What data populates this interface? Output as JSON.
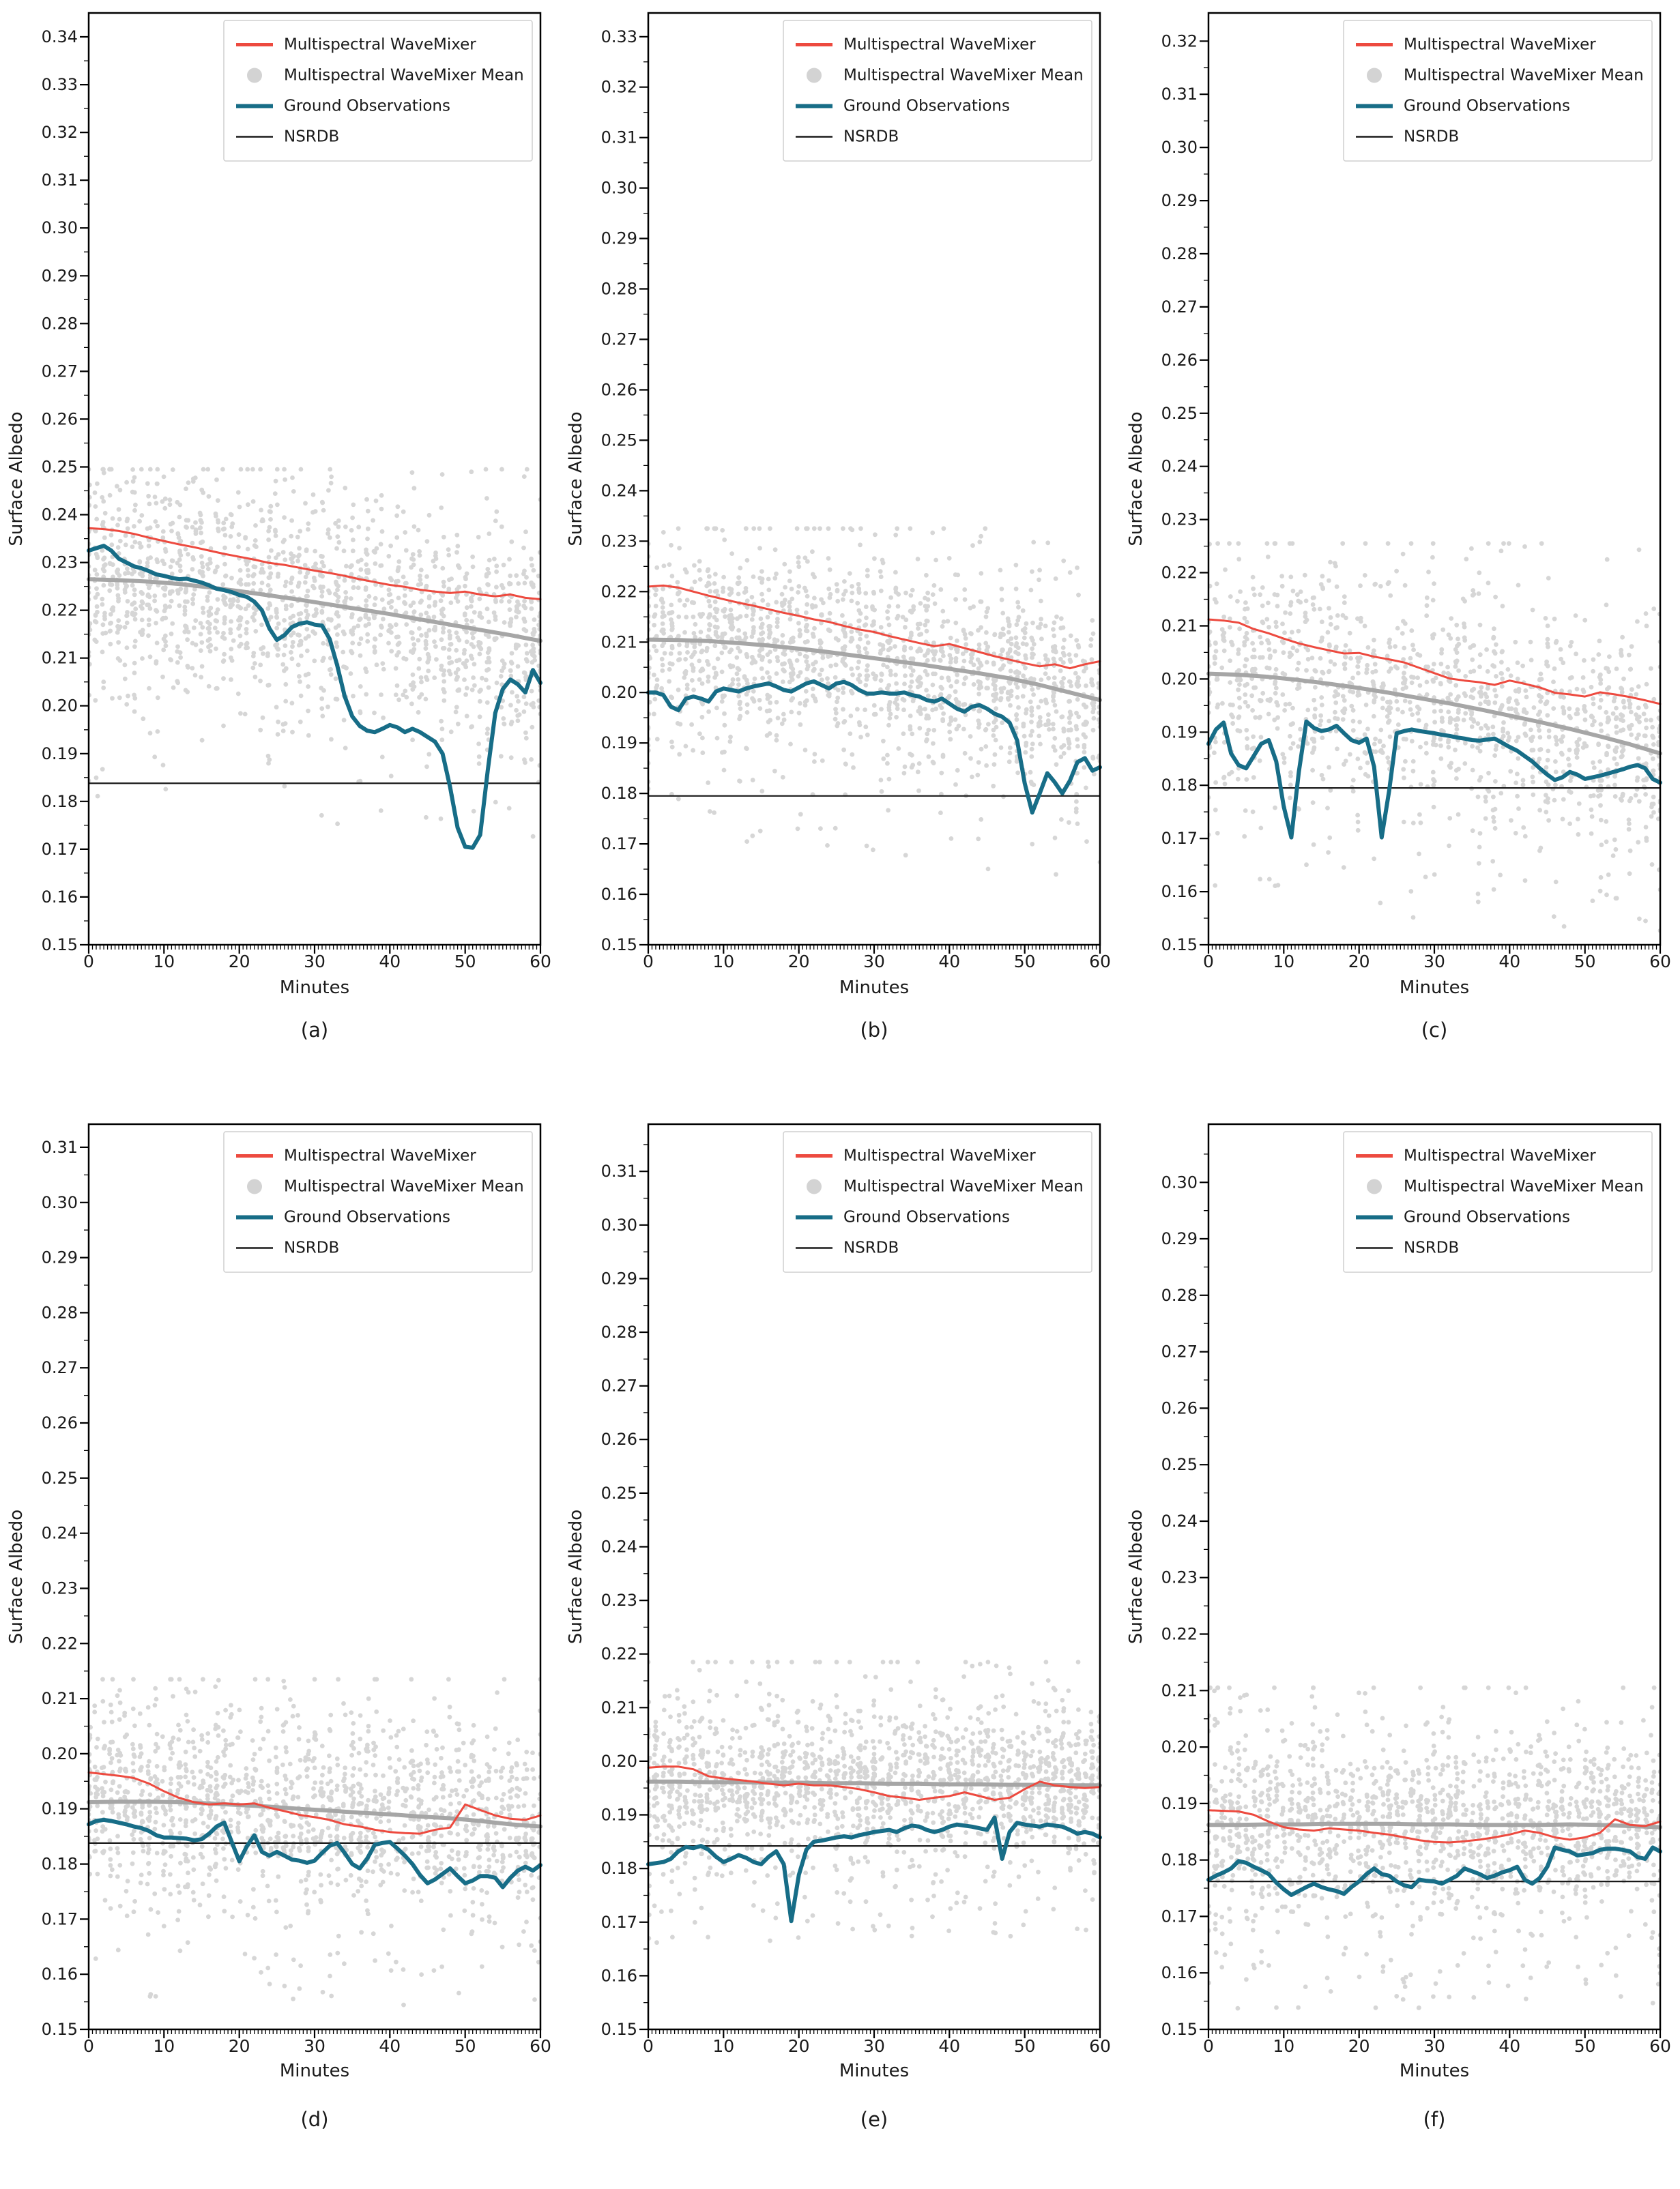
{
  "figure": {
    "ylabel": "Surface Albedo",
    "xlabel": "Minutes",
    "colors": {
      "wavemixer": "#ed4a3f",
      "ground": "#176d87",
      "mean_dot": "#d3d3d3",
      "mean_line": "#a6a6a6",
      "nsrdb": "#1a1a1a"
    },
    "legend": [
      {
        "label": "Multispectral WaveMixer",
        "type": "line",
        "color": "#ed4a3f",
        "width": 5
      },
      {
        "label": "Multispectral WaveMixer Mean",
        "type": "dot",
        "color": "#d3d3d3"
      },
      {
        "label": "Ground Observations",
        "type": "line",
        "color": "#176d87",
        "width": 6
      },
      {
        "label": "NSRDB",
        "type": "line",
        "color": "#1a1a1a",
        "width": 2.5
      }
    ]
  },
  "chart_data": {
    "type": "scatter",
    "note": "six subplots share xlabel Minutes and ylabel Surface Albedo; series below"
  },
  "charts": [
    {
      "caption": "(a)",
      "ylim": [
        0.15,
        0.345
      ],
      "yticks": [
        "0.15",
        "0.16",
        "0.17",
        "0.18",
        "0.19",
        "0.20",
        "0.21",
        "0.22",
        "0.23",
        "0.24",
        "0.25",
        "0.26",
        "0.27",
        "0.28",
        "0.29",
        "0.30",
        "0.31",
        "0.32",
        "0.33",
        "0.34"
      ],
      "xticks": [
        0,
        10,
        20,
        30,
        40,
        50,
        60
      ],
      "nsrdb": 0.1838,
      "wavemixer": {
        "xstep": 2,
        "y": [
          0.2372,
          0.237,
          0.2366,
          0.236,
          0.2352,
          0.2345,
          0.2338,
          0.2332,
          0.2325,
          0.2318,
          0.2312,
          0.2306,
          0.2299,
          0.2295,
          0.2289,
          0.2283,
          0.2278,
          0.2272,
          0.2265,
          0.2259,
          0.2253,
          0.2249,
          0.2243,
          0.2239,
          0.2236,
          0.2239,
          0.2233,
          0.2229,
          0.2233,
          0.2226,
          0.2223
        ]
      },
      "mean_trend": {
        "xstep": 4,
        "y": [
          0.2265,
          0.2263,
          0.226,
          0.2255,
          0.2248,
          0.224,
          0.2231,
          0.2222,
          0.2212,
          0.2202,
          0.2192,
          0.2181,
          0.217,
          0.2159,
          0.2148,
          0.2136
        ]
      },
      "ground": {
        "xstep": 1,
        "y": [
          0.2325,
          0.233,
          0.2335,
          0.2325,
          0.2308,
          0.23,
          0.2292,
          0.2288,
          0.2282,
          0.2275,
          0.2272,
          0.2268,
          0.2265,
          0.2266,
          0.2262,
          0.2258,
          0.2252,
          0.2245,
          0.2242,
          0.2238,
          0.2232,
          0.2228,
          0.2218,
          0.22,
          0.2162,
          0.2138,
          0.2148,
          0.2165,
          0.2172,
          0.2175,
          0.217,
          0.2168,
          0.214,
          0.2085,
          0.202,
          0.1978,
          0.1958,
          0.1948,
          0.1945,
          0.1952,
          0.196,
          0.1955,
          0.1945,
          0.1952,
          0.1945,
          0.1935,
          0.1925,
          0.19,
          0.183,
          0.1745,
          0.1705,
          0.1703,
          0.173,
          0.1865,
          0.1985,
          0.2035,
          0.2055,
          0.2045,
          0.2028,
          0.2075,
          0.2048
        ]
      },
      "scatter": {
        "seed": 11,
        "per_min": 26,
        "sigma": 0.011,
        "outlier_rate": 0.05,
        "clip": [
          0.163,
          0.2495
        ]
      }
    },
    {
      "caption": "(b)",
      "ylim": [
        0.15,
        0.3347
      ],
      "yticks": [
        "0.15",
        "0.16",
        "0.17",
        "0.18",
        "0.19",
        "0.20",
        "0.21",
        "0.22",
        "0.23",
        "0.24",
        "0.25",
        "0.26",
        "0.27",
        "0.28",
        "0.29",
        "0.30",
        "0.31",
        "0.32",
        "0.33"
      ],
      "xticks": [
        0,
        10,
        20,
        30,
        40,
        50,
        60
      ],
      "nsrdb": 0.1795,
      "wavemixer": {
        "xstep": 2,
        "y": [
          0.221,
          0.2212,
          0.2208,
          0.22,
          0.2192,
          0.2185,
          0.2178,
          0.2172,
          0.2165,
          0.2158,
          0.2152,
          0.2145,
          0.214,
          0.2132,
          0.2125,
          0.212,
          0.2112,
          0.2105,
          0.2098,
          0.2092,
          0.2096,
          0.2088,
          0.208,
          0.2072,
          0.2065,
          0.2058,
          0.2052,
          0.2056,
          0.2048,
          0.2056,
          0.2062
        ]
      },
      "mean_trend": {
        "xstep": 4,
        "y": [
          0.2105,
          0.2104,
          0.2102,
          0.2098,
          0.2093,
          0.2087,
          0.208,
          0.2072,
          0.2064,
          0.2056,
          0.2047,
          0.2038,
          0.2028,
          0.2015,
          0.2,
          0.1985
        ]
      },
      "ground": {
        "xstep": 1,
        "y": [
          0.2,
          0.2,
          0.1995,
          0.1972,
          0.1965,
          0.1988,
          0.1992,
          0.1988,
          0.1982,
          0.2002,
          0.2008,
          0.2005,
          0.2002,
          0.2008,
          0.2012,
          0.2015,
          0.2018,
          0.2012,
          0.2005,
          0.2002,
          0.201,
          0.2018,
          0.2022,
          0.2015,
          0.2008,
          0.2018,
          0.2021,
          0.2015,
          0.2005,
          0.1998,
          0.1998,
          0.2,
          0.1998,
          0.1998,
          0.2,
          0.1995,
          0.1992,
          0.1985,
          0.1982,
          0.1988,
          0.1978,
          0.1968,
          0.1962,
          0.1972,
          0.1975,
          0.1968,
          0.1958,
          0.1952,
          0.194,
          0.1905,
          0.182,
          0.1762,
          0.18,
          0.184,
          0.1822,
          0.18,
          0.1825,
          0.1862,
          0.187,
          0.1845,
          0.1852
        ]
      },
      "scatter": {
        "seed": 22,
        "per_min": 26,
        "sigma": 0.0095,
        "outlier_rate": 0.05,
        "clip": [
          0.157,
          0.2325
        ]
      }
    },
    {
      "caption": "(c)",
      "ylim": [
        0.15,
        0.3253
      ],
      "yticks": [
        "0.15",
        "0.16",
        "0.17",
        "0.18",
        "0.19",
        "0.20",
        "0.21",
        "0.22",
        "0.23",
        "0.24",
        "0.25",
        "0.26",
        "0.27",
        "0.28",
        "0.29",
        "0.30",
        "0.31",
        "0.32"
      ],
      "xticks": [
        0,
        10,
        20,
        30,
        40,
        50,
        60
      ],
      "nsrdb": 0.1795,
      "wavemixer": {
        "xstep": 2,
        "y": [
          0.2112,
          0.211,
          0.2106,
          0.2094,
          0.2086,
          0.2076,
          0.2067,
          0.206,
          0.2054,
          0.2048,
          0.2049,
          0.2042,
          0.2037,
          0.2031,
          0.2021,
          0.2011,
          0.2001,
          0.1997,
          0.1994,
          0.1989,
          0.1997,
          0.1991,
          0.1984,
          0.1974,
          0.1971,
          0.1967,
          0.1975,
          0.1971,
          0.1966,
          0.196,
          0.1953
        ]
      },
      "mean_trend": {
        "xstep": 4,
        "y": [
          0.201,
          0.2008,
          0.2004,
          0.1998,
          0.1991,
          0.1983,
          0.1974,
          0.1964,
          0.1954,
          0.1943,
          0.1931,
          0.1919,
          0.1906,
          0.1892,
          0.1877,
          0.186
        ]
      },
      "ground": {
        "xstep": 1,
        "y": [
          0.1878,
          0.1905,
          0.1918,
          0.186,
          0.1838,
          0.1832,
          0.1855,
          0.1878,
          0.1885,
          0.1845,
          0.176,
          0.1702,
          0.1825,
          0.192,
          0.1908,
          0.1902,
          0.1905,
          0.1912,
          0.1898,
          0.1885,
          0.188,
          0.1888,
          0.1835,
          0.1702,
          0.179,
          0.1898,
          0.1902,
          0.1905,
          0.1902,
          0.19,
          0.1898,
          0.1895,
          0.1893,
          0.189,
          0.1888,
          0.1885,
          0.1884,
          0.1886,
          0.1888,
          0.188,
          0.1872,
          0.1865,
          0.1855,
          0.1845,
          0.1832,
          0.182,
          0.181,
          0.1815,
          0.1825,
          0.182,
          0.1812,
          0.1815,
          0.1818,
          0.1822,
          0.1826,
          0.183,
          0.1835,
          0.1838,
          0.1832,
          0.1812,
          0.1805
        ]
      },
      "scatter": {
        "seed": 33,
        "per_min": 22,
        "sigma": 0.01,
        "outlier_rate": 0.06,
        "clip": [
          0.149,
          0.2255
        ]
      }
    },
    {
      "caption": "(d)",
      "ylim": [
        0.15,
        0.3142
      ],
      "yticks": [
        "0.15",
        "0.16",
        "0.17",
        "0.18",
        "0.19",
        "0.20",
        "0.21",
        "0.22",
        "0.23",
        "0.24",
        "0.25",
        "0.26",
        "0.27",
        "0.28",
        "0.29",
        "0.30",
        "0.31"
      ],
      "xticks": [
        0,
        10,
        20,
        30,
        40,
        50,
        60
      ],
      "nsrdb": 0.1838,
      "wavemixer": {
        "xstep": 2,
        "y": [
          0.1966,
          0.1963,
          0.196,
          0.1956,
          0.1946,
          0.1932,
          0.192,
          0.1912,
          0.1908,
          0.191,
          0.1908,
          0.191,
          0.1902,
          0.1896,
          0.1889,
          0.1885,
          0.188,
          0.1872,
          0.1868,
          0.1862,
          0.1858,
          0.1856,
          0.1855,
          0.1862,
          0.1866,
          0.1908,
          0.1898,
          0.1888,
          0.1882,
          0.188,
          0.1888
        ]
      },
      "mean_trend": {
        "xstep": 4,
        "y": [
          0.1912,
          0.1913,
          0.1913,
          0.1912,
          0.191,
          0.1907,
          0.1904,
          0.19,
          0.1897,
          0.1893,
          0.189,
          0.1886,
          0.1883,
          0.1878,
          0.1872,
          0.1868
        ]
      },
      "ground": {
        "xstep": 1,
        "y": [
          0.1872,
          0.1878,
          0.188,
          0.1878,
          0.1875,
          0.1872,
          0.1868,
          0.1865,
          0.186,
          0.1852,
          0.1848,
          0.1848,
          0.1847,
          0.1846,
          0.1843,
          0.1845,
          0.1855,
          0.1868,
          0.1875,
          0.184,
          0.1805,
          0.1832,
          0.1852,
          0.1822,
          0.1815,
          0.1822,
          0.1815,
          0.1808,
          0.1806,
          0.1802,
          0.1806,
          0.182,
          0.1833,
          0.1838,
          0.182,
          0.18,
          0.1792,
          0.181,
          0.1835,
          0.1838,
          0.184,
          0.1828,
          0.1815,
          0.18,
          0.178,
          0.1765,
          0.1772,
          0.1782,
          0.1792,
          0.1778,
          0.1765,
          0.177,
          0.1778,
          0.1778,
          0.1775,
          0.1758,
          0.1775,
          0.1788,
          0.1795,
          0.1788,
          0.1798
        ]
      },
      "scatter": {
        "seed": 44,
        "per_min": 25,
        "sigma": 0.0085,
        "outlier_rate": 0.06,
        "clip": [
          0.152,
          0.2135
        ]
      }
    },
    {
      "caption": "(e)",
      "ylim": [
        0.15,
        0.3188
      ],
      "yticks": [
        "0.15",
        "0.16",
        "0.17",
        "0.18",
        "0.19",
        "0.20",
        "0.21",
        "0.22",
        "0.23",
        "0.24",
        "0.25",
        "0.26",
        "0.27",
        "0.28",
        "0.29",
        "0.30",
        "0.31"
      ],
      "xticks": [
        0,
        10,
        20,
        30,
        40,
        50,
        60
      ],
      "nsrdb": 0.1842,
      "wavemixer": {
        "xstep": 2,
        "y": [
          0.1988,
          0.199,
          0.199,
          0.1985,
          0.1972,
          0.1968,
          0.1965,
          0.1962,
          0.1958,
          0.1955,
          0.1958,
          0.1955,
          0.1955,
          0.1952,
          0.1948,
          0.1942,
          0.1935,
          0.1932,
          0.1928,
          0.1932,
          0.1935,
          0.1942,
          0.1935,
          0.1928,
          0.1932,
          0.1948,
          0.1962,
          0.1955,
          0.1952,
          0.195,
          0.1952
        ]
      },
      "mean_trend": {
        "xstep": 4,
        "y": [
          0.1962,
          0.1962,
          0.1961,
          0.1961,
          0.196,
          0.196,
          0.1959,
          0.1959,
          0.1958,
          0.1958,
          0.1957,
          0.1957,
          0.1956,
          0.1956,
          0.1955,
          0.1955
        ]
      },
      "ground": {
        "xstep": 1,
        "y": [
          0.1808,
          0.181,
          0.1812,
          0.1818,
          0.1832,
          0.184,
          0.1838,
          0.1842,
          0.1835,
          0.1822,
          0.1812,
          0.1818,
          0.1825,
          0.182,
          0.1812,
          0.1808,
          0.1822,
          0.1832,
          0.1808,
          0.1702,
          0.1788,
          0.1835,
          0.185,
          0.1852,
          0.1855,
          0.1858,
          0.186,
          0.1858,
          0.1862,
          0.1865,
          0.1868,
          0.187,
          0.1872,
          0.1868,
          0.1875,
          0.188,
          0.1878,
          0.1872,
          0.1868,
          0.1872,
          0.1878,
          0.1882,
          0.188,
          0.1878,
          0.1875,
          0.1872,
          0.1895,
          0.1818,
          0.1868,
          0.1885,
          0.1882,
          0.188,
          0.1878,
          0.1882,
          0.188,
          0.1878,
          0.1872,
          0.1865,
          0.1868,
          0.1865,
          0.1858
        ]
      },
      "scatter": {
        "seed": 55,
        "per_min": 28,
        "sigma": 0.0072,
        "outlier_rate": 0.07,
        "clip": [
          0.153,
          0.2185
        ]
      }
    },
    {
      "caption": "(f)",
      "ylim": [
        0.15,
        0.3103
      ],
      "yticks": [
        "0.15",
        "0.16",
        "0.17",
        "0.18",
        "0.19",
        "0.20",
        "0.21",
        "0.22",
        "0.23",
        "0.24",
        "0.25",
        "0.26",
        "0.27",
        "0.28",
        "0.29",
        "0.30"
      ],
      "xticks": [
        0,
        10,
        20,
        30,
        40,
        50,
        60
      ],
      "nsrdb": 0.1762,
      "wavemixer": {
        "xstep": 2,
        "y": [
          0.1888,
          0.1887,
          0.1886,
          0.188,
          0.1868,
          0.1858,
          0.1854,
          0.1852,
          0.1856,
          0.1854,
          0.1852,
          0.1848,
          0.1845,
          0.184,
          0.1835,
          0.1832,
          0.1831,
          0.1833,
          0.1836,
          0.184,
          0.1845,
          0.1852,
          0.1848,
          0.184,
          0.1836,
          0.184,
          0.1848,
          0.1872,
          0.1862,
          0.186,
          0.1868
        ]
      },
      "mean_trend": {
        "xstep": 4,
        "y": [
          0.1862,
          0.1862,
          0.1863,
          0.1863,
          0.1864,
          0.1864,
          0.1864,
          0.1863,
          0.1863,
          0.1862,
          0.1862,
          0.1862,
          0.1863,
          0.1862,
          0.186,
          0.1858
        ]
      },
      "ground": {
        "xstep": 1,
        "y": [
          0.1765,
          0.1772,
          0.1778,
          0.1785,
          0.1798,
          0.1795,
          0.1788,
          0.1782,
          0.1775,
          0.176,
          0.1748,
          0.1738,
          0.1745,
          0.1752,
          0.1758,
          0.1752,
          0.1748,
          0.1745,
          0.174,
          0.1752,
          0.1762,
          0.1775,
          0.1785,
          0.1775,
          0.1772,
          0.1762,
          0.1755,
          0.1752,
          0.1765,
          0.1763,
          0.1762,
          0.1758,
          0.1765,
          0.1772,
          0.1785,
          0.178,
          0.1775,
          0.1768,
          0.1772,
          0.1778,
          0.1782,
          0.1788,
          0.1765,
          0.1758,
          0.1768,
          0.1788,
          0.1822,
          0.1818,
          0.1815,
          0.1808,
          0.181,
          0.1812,
          0.1818,
          0.182,
          0.182,
          0.1818,
          0.1815,
          0.1805,
          0.1802,
          0.1822,
          0.1815
        ]
      },
      "scatter": {
        "seed": 66,
        "per_min": 25,
        "sigma": 0.0078,
        "outlier_rate": 0.07,
        "clip": [
          0.151,
          0.2105
        ]
      }
    }
  ]
}
